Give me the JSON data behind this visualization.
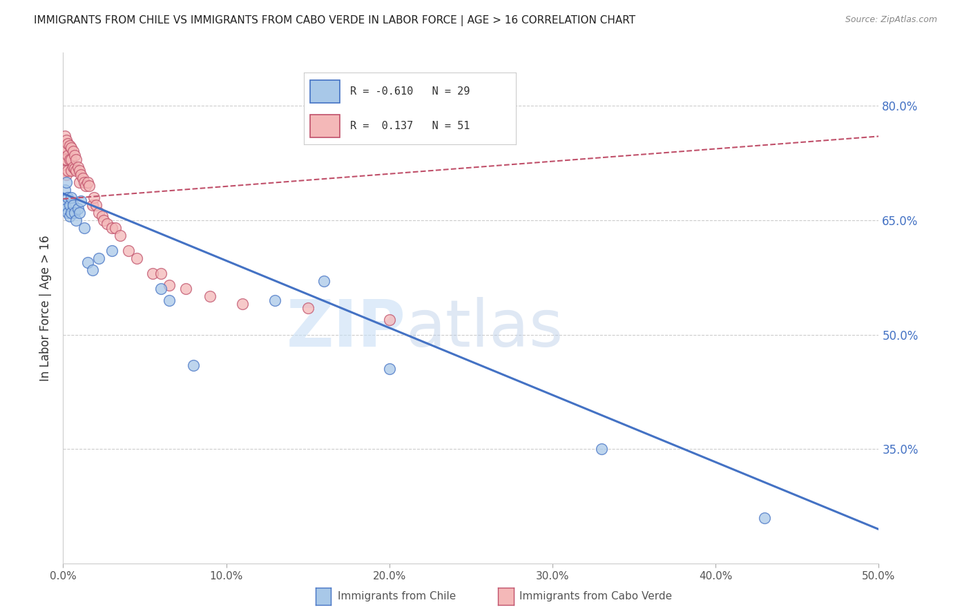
{
  "title": "IMMIGRANTS FROM CHILE VS IMMIGRANTS FROM CABO VERDE IN LABOR FORCE | AGE > 16 CORRELATION CHART",
  "source": "Source: ZipAtlas.com",
  "ylabel": "In Labor Force | Age > 16",
  "legend_label_chile": "Immigrants from Chile",
  "legend_label_cabo": "Immigrants from Cabo Verde",
  "R_chile": -0.61,
  "N_chile": 29,
  "R_cabo": 0.137,
  "N_cabo": 51,
  "xlim": [
    0.0,
    0.5
  ],
  "ylim": [
    0.2,
    0.87
  ],
  "yticks": [
    0.35,
    0.5,
    0.65,
    0.8
  ],
  "ytick_labels": [
    "35.0%",
    "50.0%",
    "65.0%",
    "80.0%"
  ],
  "xticks": [
    0.0,
    0.1,
    0.2,
    0.3,
    0.4,
    0.5
  ],
  "xtick_labels": [
    "0.0%",
    "10.0%",
    "20.0%",
    "30.0%",
    "40.0%",
    "50.0%"
  ],
  "color_chile": "#a8c8e8",
  "color_cabo": "#f4b8b8",
  "color_chile_line": "#4472c4",
  "color_cabo_line": "#c0506a",
  "watermark_zip": "ZIP",
  "watermark_atlas": "atlas",
  "chile_x": [
    0.001,
    0.001,
    0.002,
    0.002,
    0.003,
    0.003,
    0.004,
    0.004,
    0.005,
    0.005,
    0.006,
    0.007,
    0.008,
    0.009,
    0.01,
    0.011,
    0.013,
    0.015,
    0.018,
    0.022,
    0.03,
    0.06,
    0.065,
    0.08,
    0.13,
    0.16,
    0.2,
    0.33,
    0.43
  ],
  "chile_y": [
    0.69,
    0.67,
    0.7,
    0.665,
    0.68,
    0.66,
    0.67,
    0.655,
    0.66,
    0.68,
    0.67,
    0.66,
    0.65,
    0.665,
    0.66,
    0.675,
    0.64,
    0.595,
    0.585,
    0.6,
    0.61,
    0.56,
    0.545,
    0.46,
    0.545,
    0.57,
    0.455,
    0.35,
    0.26
  ],
  "cabo_x": [
    0.001,
    0.001,
    0.001,
    0.001,
    0.002,
    0.002,
    0.002,
    0.002,
    0.003,
    0.003,
    0.003,
    0.004,
    0.004,
    0.005,
    0.005,
    0.005,
    0.006,
    0.006,
    0.007,
    0.007,
    0.008,
    0.008,
    0.009,
    0.01,
    0.01,
    0.011,
    0.012,
    0.013,
    0.014,
    0.015,
    0.016,
    0.018,
    0.019,
    0.02,
    0.022,
    0.024,
    0.025,
    0.027,
    0.03,
    0.032,
    0.035,
    0.04,
    0.045,
    0.055,
    0.06,
    0.065,
    0.075,
    0.09,
    0.11,
    0.15,
    0.2
  ],
  "cabo_y": [
    0.76,
    0.74,
    0.73,
    0.715,
    0.755,
    0.745,
    0.73,
    0.71,
    0.75,
    0.735,
    0.715,
    0.748,
    0.73,
    0.745,
    0.73,
    0.715,
    0.74,
    0.72,
    0.735,
    0.718,
    0.73,
    0.715,
    0.72,
    0.715,
    0.7,
    0.71,
    0.705,
    0.7,
    0.695,
    0.7,
    0.695,
    0.67,
    0.68,
    0.67,
    0.66,
    0.655,
    0.65,
    0.645,
    0.64,
    0.64,
    0.63,
    0.61,
    0.6,
    0.58,
    0.58,
    0.565,
    0.56,
    0.55,
    0.54,
    0.535,
    0.52
  ],
  "chile_trend_x": [
    0.0,
    0.5
  ],
  "chile_trend_y": [
    0.685,
    0.245
  ],
  "cabo_trend_x": [
    0.0,
    0.5
  ],
  "cabo_trend_y": [
    0.678,
    0.76
  ]
}
